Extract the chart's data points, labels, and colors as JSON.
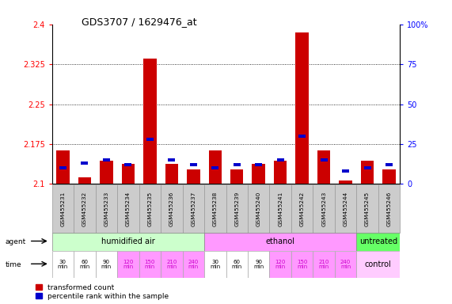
{
  "title": "GDS3707 / 1629476_at",
  "samples": [
    "GSM455231",
    "GSM455232",
    "GSM455233",
    "GSM455234",
    "GSM455235",
    "GSM455236",
    "GSM455237",
    "GSM455238",
    "GSM455239",
    "GSM455240",
    "GSM455241",
    "GSM455242",
    "GSM455243",
    "GSM455244",
    "GSM455245",
    "GSM455246"
  ],
  "red_values": [
    2.163,
    2.112,
    2.143,
    2.138,
    2.335,
    2.138,
    2.128,
    2.163,
    2.128,
    2.138,
    2.143,
    2.385,
    2.163,
    2.107,
    2.143,
    2.128
  ],
  "blue_values_pct": [
    10,
    13,
    15,
    12,
    28,
    15,
    12,
    10,
    12,
    12,
    15,
    30,
    15,
    8,
    10,
    12
  ],
  "ylim_left": [
    2.1,
    2.4
  ],
  "ylim_right": [
    0,
    100
  ],
  "yticks_left": [
    2.1,
    2.175,
    2.25,
    2.325,
    2.4
  ],
  "yticks_right": [
    0,
    25,
    50,
    75,
    100
  ],
  "ytick_labels_left": [
    "2.1",
    "2.175",
    "2.25",
    "2.325",
    "2.4"
  ],
  "ytick_labels_right": [
    "0",
    "25",
    "50",
    "75",
    "100%"
  ],
  "agent_groups": [
    {
      "label": "humidified air",
      "start": 0,
      "end": 7,
      "color": "#ccffcc"
    },
    {
      "label": "ethanol",
      "start": 7,
      "end": 14,
      "color": "#ff99ff"
    },
    {
      "label": "untreated",
      "start": 14,
      "end": 16,
      "color": "#66ff66"
    }
  ],
  "time_labels_14": [
    "30\nmin",
    "60\nmin",
    "90\nmin",
    "120\nmin",
    "150\nmin",
    "210\nmin",
    "240\nmin",
    "30\nmin",
    "60\nmin",
    "90\nmin",
    "120\nmin",
    "150\nmin",
    "210\nmin",
    "240\nmin"
  ],
  "time_colors_14": [
    "#ffffff",
    "#ffffff",
    "#ffffff",
    "#ff99ff",
    "#ff99ff",
    "#ff99ff",
    "#ff99ff",
    "#ffffff",
    "#ffffff",
    "#ffffff",
    "#ff99ff",
    "#ff99ff",
    "#ff99ff",
    "#ff99ff"
  ],
  "time_text_colors_14": [
    "#000000",
    "#000000",
    "#000000",
    "#cc00cc",
    "#cc00cc",
    "#cc00cc",
    "#cc00cc",
    "#000000",
    "#000000",
    "#000000",
    "#cc00cc",
    "#cc00cc",
    "#cc00cc",
    "#cc00cc"
  ],
  "bar_width": 0.6,
  "red_color": "#cc0000",
  "blue_color": "#0000cc",
  "base_value": 2.1,
  "sample_bg_color": "#cccccc",
  "sample_border_color": "#999999"
}
